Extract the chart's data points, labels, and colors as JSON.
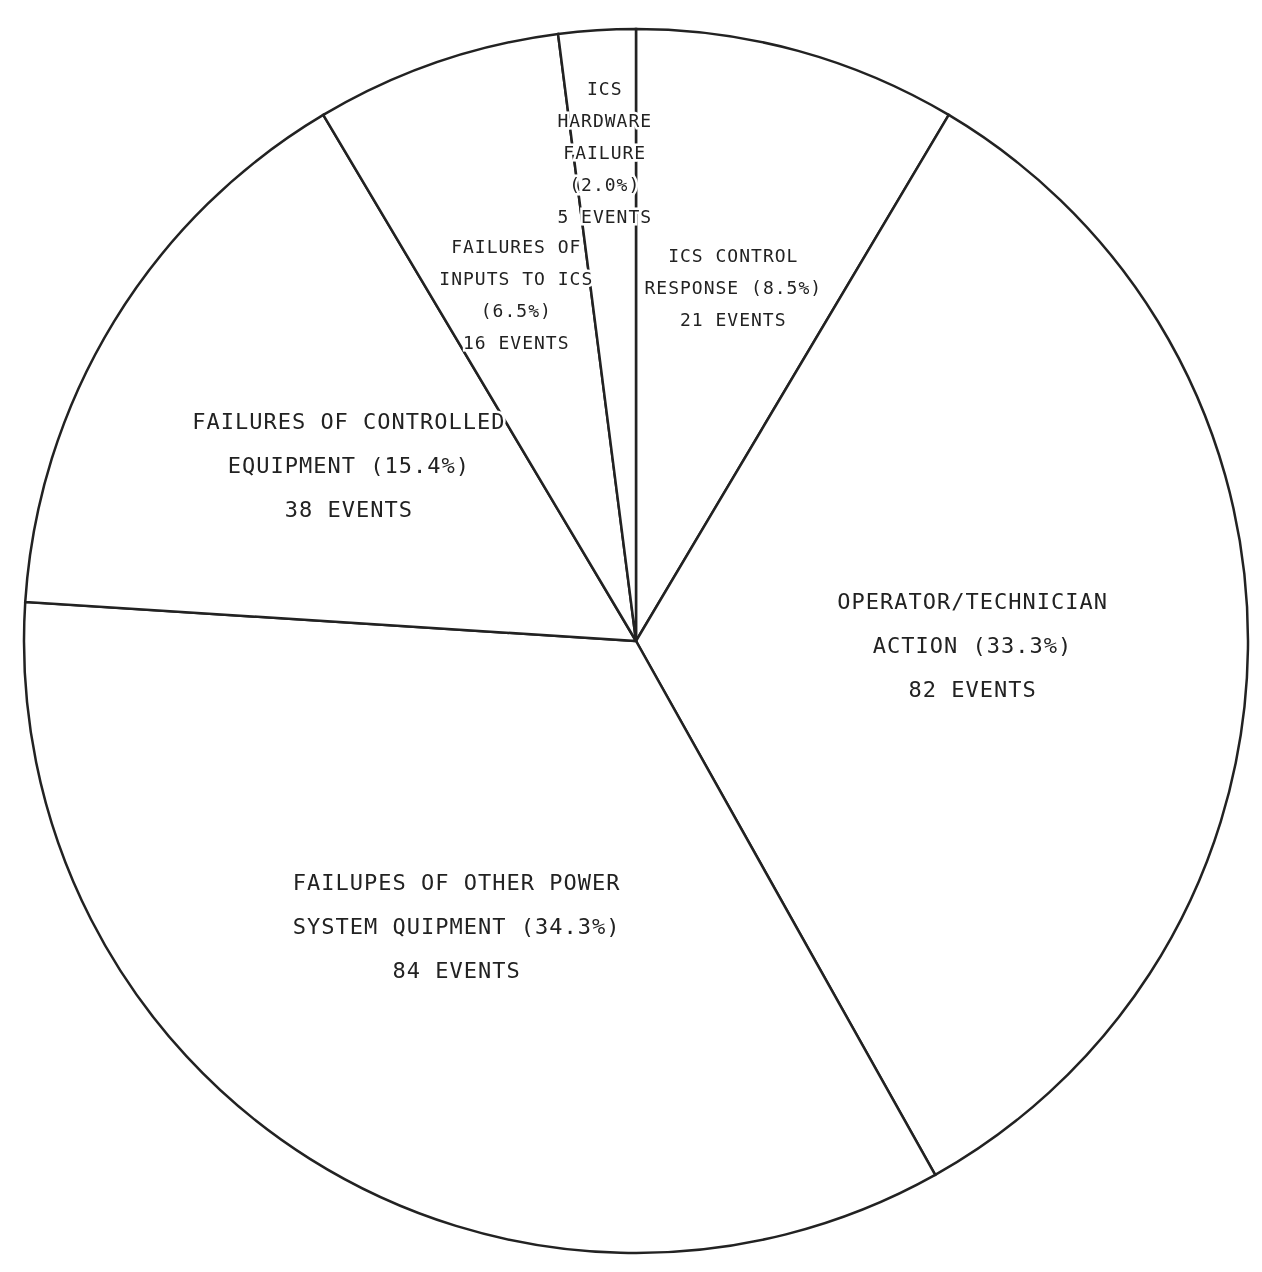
{
  "chart_data": {
    "type": "pie",
    "categories": [
      "ICS CONTROL RESPONSE (8.5%)",
      "OPERATOR/TECHNICIAN ACTION (33.3%)",
      "FAILUPES OF OTHER POWER SYSTEM QUIPMENT (34.3%)",
      "FAILURES OF CONTROLLED EQUIPMENT (15.4%)",
      "FAILURES OF INPUTS TO ICS (6.5%)",
      "ICS HARDWARE FAILURE (2.0%)"
    ],
    "values": [
      21,
      82,
      84,
      38,
      16,
      5
    ],
    "value_labels": [
      "21 EVENTS",
      "82 EVENTS",
      "84 EVENTS",
      "38 EVENTS",
      "16 EVENTS",
      "5 EVENTS"
    ],
    "colors": [
      "#ffffff",
      "#ffffff",
      "#ffffff",
      "#ffffff",
      "#ffffff",
      "#ffffff"
    ],
    "legend": false
  }
}
